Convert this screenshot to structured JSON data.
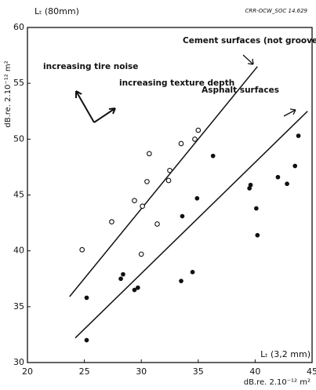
{
  "chart_data": {
    "type": "scatter",
    "y_title": "Lₜ (80mm)",
    "code": "CRR-OCW_SOC 14.629",
    "y_unit": "dB.re. 2.10⁻¹² m²",
    "x_title": "Lₜ (3,2 mm)",
    "x_unit": "dB.re. 2.10⁻¹² m²",
    "annotations": [
      "increasing tire noise",
      "increasing texture depth"
    ],
    "xlim": [
      20,
      45
    ],
    "xticks": [
      20,
      25,
      30,
      35,
      40,
      45
    ],
    "ylim": [
      30,
      60
    ],
    "yticks": [
      30,
      35,
      40,
      45,
      50,
      55,
      60
    ],
    "series": [
      {
        "name": "Cement surfaces (not grooved)",
        "marker": "open",
        "color": "#111",
        "x": [
          24.8,
          27.4,
          29.4,
          30.1,
          30.0,
          30.5,
          30.7,
          31.4,
          32.4,
          32.5,
          33.5,
          34.7,
          35.0
        ],
        "values": [
          40.1,
          42.6,
          44.5,
          44.0,
          39.7,
          46.2,
          48.7,
          42.4,
          46.3,
          47.2,
          49.6,
          50.0,
          50.8
        ],
        "fit": {
          "x": [
            23.7,
            40.2
          ],
          "values": [
            35.9,
            56.5
          ]
        }
      },
      {
        "name": "Asphalt surfaces",
        "marker": "filled",
        "color": "#111",
        "x": [
          25.2,
          25.2,
          28.2,
          28.4,
          29.4,
          29.7,
          33.5,
          33.6,
          34.5,
          34.9,
          36.3,
          39.5,
          39.6,
          40.1,
          40.2,
          42.0,
          42.8,
          43.5,
          43.8
        ],
        "values": [
          35.8,
          32.0,
          37.5,
          37.9,
          36.5,
          36.7,
          37.3,
          43.1,
          38.1,
          44.7,
          48.5,
          45.6,
          45.9,
          43.8,
          41.4,
          46.6,
          46.0,
          47.6,
          50.3
        ],
        "fit": {
          "x": [
            24.2,
            44.6
          ],
          "values": [
            32.2,
            52.5
          ]
        }
      }
    ]
  }
}
